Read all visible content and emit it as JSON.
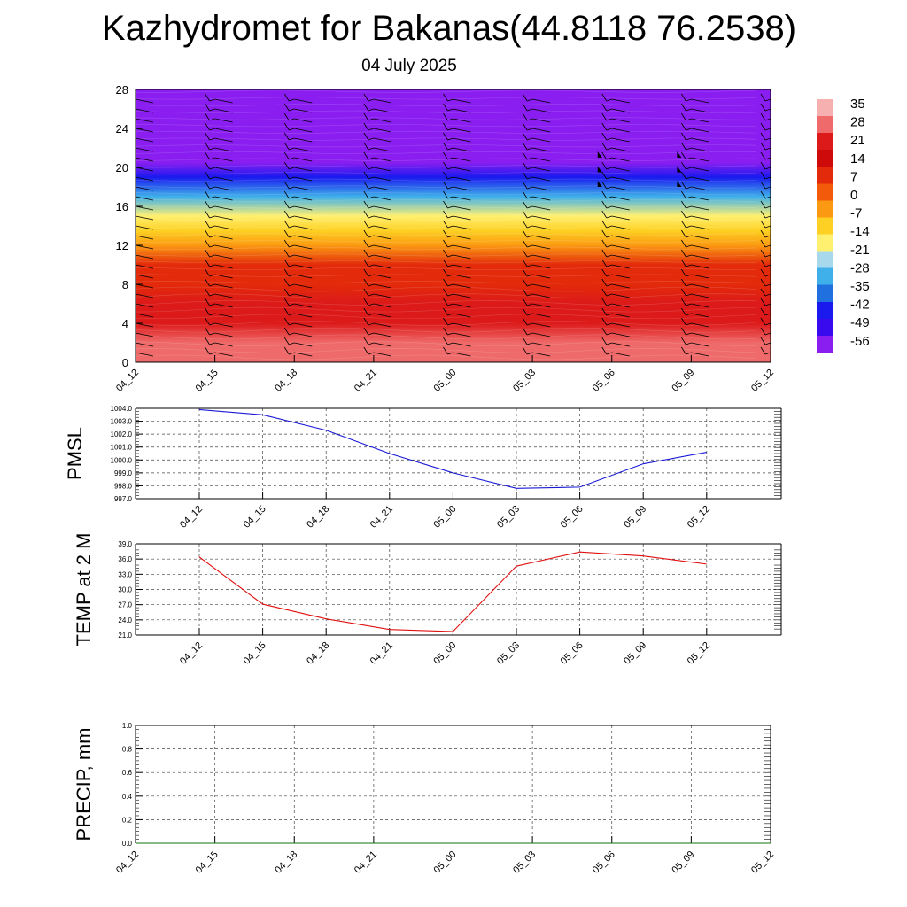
{
  "header": {
    "title": "Kazhydromet for Bakanas(44.8118 76.2538)",
    "subtitle": "04 July 2025"
  },
  "chart_data": [
    {
      "type": "heatmap",
      "title": "Kazhydromet for Bakanas(44.8118 76.2538)",
      "subtitle": "04 July 2025",
      "x_tick_labels": [
        "04_12",
        "04_15",
        "04_18",
        "04_21",
        "05_00",
        "05_03",
        "05_06",
        "05_09",
        "05_12"
      ],
      "y_ticks": [
        0,
        4,
        8,
        12,
        16,
        20,
        24,
        28
      ],
      "ylim": [
        0,
        28
      ],
      "colorbar_labels": [
        35,
        28,
        21,
        14,
        7,
        0,
        -7,
        -14,
        -21,
        -28,
        -35,
        -42,
        -49,
        -56
      ],
      "colorbar_colors": [
        "#f6b0b0",
        "#ef6a6a",
        "#dc1a1a",
        "#cf0a0a",
        "#e32a0a",
        "#f35a0a",
        "#fb9a12",
        "#fdd023",
        "#fff070",
        "#a8d8ec",
        "#3fb0ea",
        "#2070e0",
        "#1a1aef",
        "#3a0aef",
        "#8a1ef0"
      ],
      "temperature_profile": [
        {
          "height": 0,
          "value": 33
        },
        {
          "height": 2,
          "value": 28
        },
        {
          "height": 4,
          "value": 23
        },
        {
          "height": 6,
          "value": 20
        },
        {
          "height": 8,
          "value": 12
        },
        {
          "height": 10,
          "value": 6
        },
        {
          "height": 12,
          "value": -2
        },
        {
          "height": 13.5,
          "value": -12
        },
        {
          "height": 15,
          "value": -20
        },
        {
          "height": 17,
          "value": -32
        },
        {
          "height": 19,
          "value": -46
        },
        {
          "height": 20.5,
          "value": -56
        },
        {
          "height": 22,
          "value": -62
        },
        {
          "height": 28,
          "value": -64
        }
      ],
      "wind_barbs": "present"
    },
    {
      "type": "line",
      "ylabel": "PMSL",
      "categories": [
        "04_12",
        "04_15",
        "04_18",
        "04_21",
        "05_00",
        "05_03",
        "05_06",
        "05_09",
        "05_12"
      ],
      "values": [
        1003.9,
        1003.5,
        1002.3,
        1000.5,
        999.0,
        997.8,
        997.9,
        999.7,
        1000.6
      ],
      "ylim": [
        997.0,
        1004.0
      ],
      "y_ticks": [
        "1004.0",
        "1003.0",
        "1002.0",
        "1001.0",
        "1000.0",
        "999.0",
        "998.0",
        "997.0"
      ],
      "color": "#1a1ad6",
      "grid": true
    },
    {
      "type": "line",
      "ylabel": "TEMP at 2 M",
      "categories": [
        "04_12",
        "04_15",
        "04_18",
        "04_21",
        "05_00",
        "05_03",
        "05_06",
        "05_09",
        "05_12"
      ],
      "values": [
        36.4,
        27.1,
        24.2,
        22.1,
        21.7,
        34.6,
        37.4,
        36.6,
        35.0
      ],
      "ylim": [
        21.0,
        39.0
      ],
      "y_ticks": [
        "39.0",
        "36.0",
        "33.0",
        "30.0",
        "27.0",
        "24.0",
        "21.0"
      ],
      "color": "#e01010",
      "grid": true
    },
    {
      "type": "line",
      "ylabel": "PRECIP, mm",
      "categories": [
        "04_12",
        "04_15",
        "04_18",
        "04_21",
        "05_00",
        "05_03",
        "05_06",
        "05_09",
        "05_12"
      ],
      "values": [
        0,
        0,
        0,
        0,
        0,
        0,
        0,
        0,
        0
      ],
      "ylim": [
        0.0,
        1.0
      ],
      "y_ticks": [
        "1.0",
        "0.8",
        "0.6",
        "0.4",
        "0.2",
        "0.0"
      ],
      "color": "#107010",
      "grid": true
    }
  ]
}
